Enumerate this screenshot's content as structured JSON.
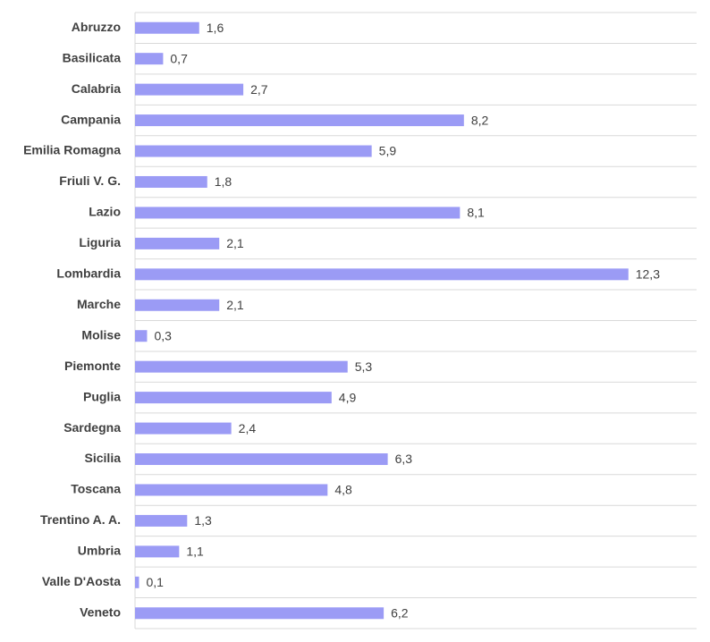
{
  "chart_data": {
    "type": "bar",
    "orientation": "horizontal",
    "categories": [
      "Abruzzo",
      "Basilicata",
      "Calabria",
      "Campania",
      "Emilia Romagna",
      "Friuli V. G.",
      "Lazio",
      "Liguria",
      "Lombardia",
      "Marche",
      "Molise",
      "Piemonte",
      "Puglia",
      "Sardegna",
      "Sicilia",
      "Toscana",
      "Trentino A. A.",
      "Umbria",
      "Valle D'Aosta",
      "Veneto"
    ],
    "values": [
      1.6,
      0.7,
      2.7,
      8.2,
      5.9,
      1.8,
      8.1,
      2.1,
      12.3,
      2.1,
      0.3,
      5.3,
      4.9,
      2.4,
      6.3,
      4.8,
      1.3,
      1.1,
      0.1,
      6.2
    ],
    "value_labels": [
      "1,6",
      "0,7",
      "2,7",
      "8,2",
      "5,9",
      "1,8",
      "8,1",
      "2,1",
      "12,3",
      "2,1",
      "0,3",
      "5,3",
      "4,9",
      "2,4",
      "6,3",
      "4,8",
      "1,3",
      "1,1",
      "0,1",
      "6,2"
    ],
    "color": "#9b9bf5",
    "xlim": [
      0,
      14
    ],
    "grid": true
  }
}
